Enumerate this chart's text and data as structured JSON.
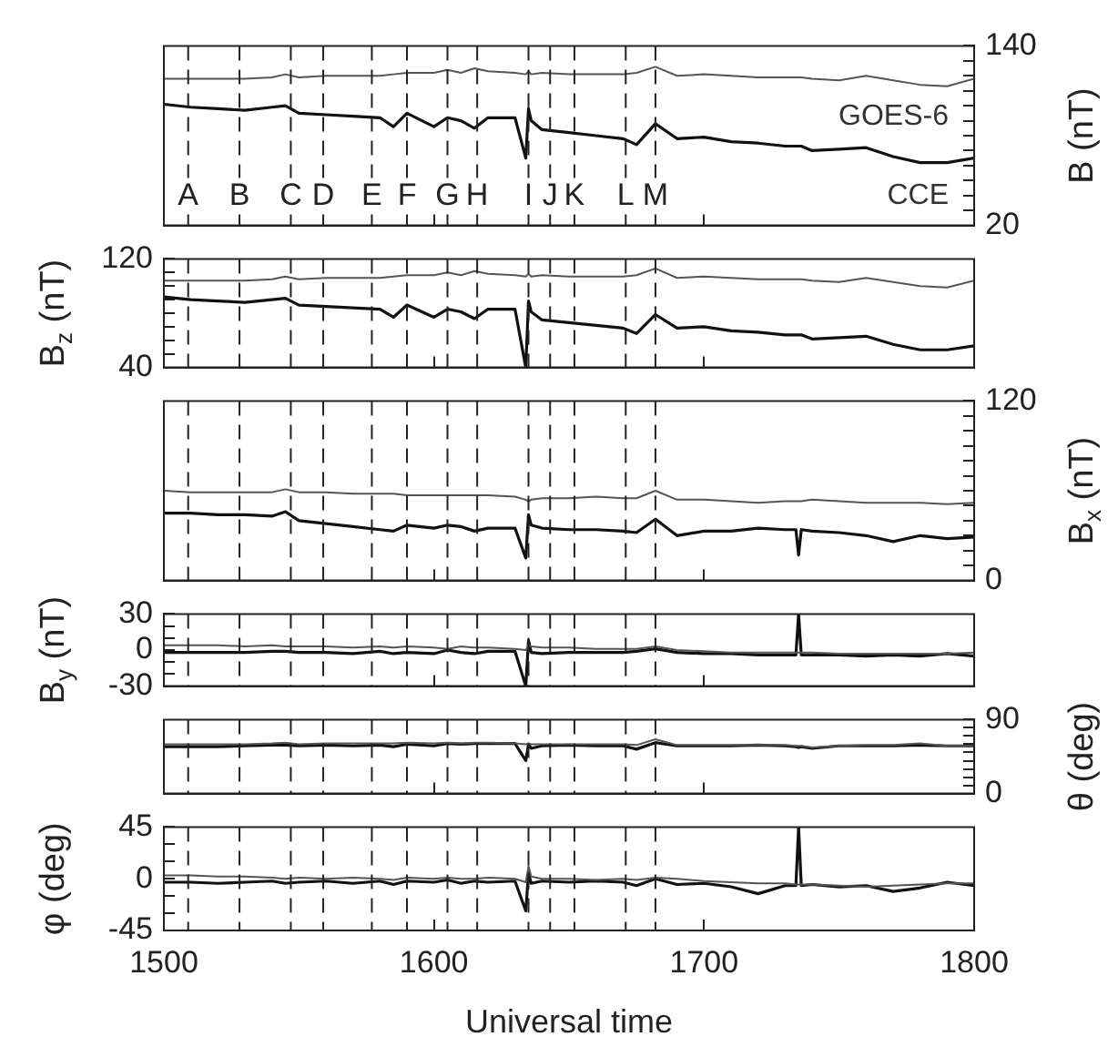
{
  "chart_data": [
    {
      "type": "line",
      "marker": "none",
      "xlim": [
        1500,
        1800
      ],
      "xticks": [
        1500,
        1600,
        1700,
        1800
      ],
      "tick_labels": "y",
      "y2lim": [
        20,
        140
      ],
      "y2label": "B (nT)",
      "y2ticks": [
        20,
        {
          "value": 30,
          "label": null
        },
        {
          "value": 40,
          "label": null
        },
        {
          "value": 50,
          "label": null
        },
        {
          "value": 60,
          "label": null
        },
        {
          "value": 70,
          "label": null
        },
        {
          "value": 80,
          "label": null
        },
        {
          "value": 90,
          "label": null
        },
        {
          "value": 100,
          "label": null
        },
        {
          "value": 110,
          "label": null
        },
        {
          "value": 120,
          "label": null
        },
        {
          "value": 130,
          "label": null
        },
        140
      ],
      "x": [
        1500,
        1510,
        1520,
        1530,
        1540,
        1545,
        1550,
        1560,
        1570,
        1580,
        1585,
        1590,
        1600,
        1605,
        1610,
        1615,
        1620,
        1630,
        1634,
        1635,
        1636,
        1640,
        1650,
        1660,
        1670,
        1675,
        1682,
        1690,
        1700,
        1710,
        1720,
        1730,
        1734,
        1735,
        1736,
        1740,
        1750,
        1760,
        1770,
        1780,
        1790,
        1800
      ],
      "series": [
        {
          "name": "GOES-6",
          "color": "#555555",
          "axis": "y2",
          "values": [
            118,
            118,
            118,
            118,
            119,
            121,
            119,
            120,
            120,
            120,
            121,
            122,
            122,
            124,
            122,
            125,
            123,
            122,
            121,
            123,
            121,
            122,
            121,
            121,
            121,
            122,
            126,
            120,
            121,
            120,
            119,
            119,
            119,
            119,
            119,
            118,
            117,
            120,
            117,
            114,
            113,
            118
          ]
        },
        {
          "name": "CCE",
          "color": "#111111",
          "axis": "y2",
          "values": [
            101,
            99,
            98,
            97,
            99,
            100,
            95,
            94,
            93,
            92,
            86,
            95,
            86,
            92,
            90,
            85,
            92,
            92,
            65,
            98,
            90,
            84,
            82,
            80,
            78,
            74,
            88,
            78,
            79,
            76,
            75,
            73,
            73,
            73,
            73,
            70,
            71,
            72,
            66,
            62,
            62,
            65
          ]
        }
      ],
      "ref_lines": [
        {
          "axis": "x",
          "value": 1509,
          "label": "A",
          "line_style": "dashed"
        },
        {
          "axis": "x",
          "value": 1528,
          "label": "B",
          "line_style": "dashed"
        },
        {
          "axis": "x",
          "value": 1547,
          "label": "C",
          "line_style": "dashed"
        },
        {
          "axis": "x",
          "value": 1559,
          "label": "D",
          "line_style": "dashed"
        },
        {
          "axis": "x",
          "value": 1577,
          "label": "E",
          "line_style": "dashed"
        },
        {
          "axis": "x",
          "value": 1590,
          "label": "F",
          "line_style": "dashed"
        },
        {
          "axis": "x",
          "value": 1605,
          "label": "G",
          "line_style": "dashed"
        },
        {
          "axis": "x",
          "value": 1616,
          "label": "H",
          "line_style": "dashed"
        },
        {
          "axis": "x",
          "value": 1635,
          "label": "I",
          "line_style": "dashed"
        },
        {
          "axis": "x",
          "value": 1643,
          "label": "J",
          "line_style": "dashed"
        },
        {
          "axis": "x",
          "value": 1652,
          "label": "K",
          "line_style": "dashed"
        },
        {
          "axis": "x",
          "value": 1671,
          "label": "L",
          "line_style": "dashed"
        },
        {
          "axis": "x",
          "value": 1682,
          "label": "M",
          "line_style": "dashed"
        }
      ]
    },
    {
      "type": "line",
      "marker": "none",
      "xlim": [
        1500,
        1800
      ],
      "xticks": [
        1500,
        1600,
        1700,
        1800
      ],
      "tick_labels": "y",
      "ylim": [
        40,
        120
      ],
      "ylabel": "B$_{z}$ (nT)",
      "yticks": [
        40,
        {
          "value": 50,
          "label": null
        },
        {
          "value": 60,
          "label": null
        },
        {
          "value": 70,
          "label": null
        },
        {
          "value": 80,
          "label": null
        },
        {
          "value": 90,
          "label": null
        },
        {
          "value": 100,
          "label": null
        },
        {
          "value": 110,
          "label": null
        },
        120
      ],
      "x": [
        1500,
        1510,
        1520,
        1530,
        1540,
        1545,
        1550,
        1560,
        1570,
        1580,
        1585,
        1590,
        1600,
        1605,
        1610,
        1615,
        1620,
        1630,
        1634,
        1635,
        1636,
        1640,
        1650,
        1660,
        1670,
        1675,
        1682,
        1690,
        1700,
        1710,
        1720,
        1730,
        1734,
        1735,
        1736,
        1740,
        1750,
        1760,
        1770,
        1780,
        1790,
        1800
      ],
      "series": [
        {
          "color": "#555555",
          "values": [
            104,
            104,
            104,
            104,
            105,
            107,
            105,
            106,
            106,
            106,
            107,
            108,
            108,
            110,
            108,
            111,
            109,
            108,
            107,
            109,
            107,
            108,
            107,
            107,
            107,
            108,
            113,
            106,
            107,
            106,
            105,
            105,
            105,
            105,
            105,
            104,
            103,
            106,
            103,
            100,
            99,
            104
          ]
        },
        {
          "color": "#111111",
          "values": [
            92,
            90,
            89,
            88,
            90,
            91,
            86,
            85,
            84,
            83,
            77,
            86,
            77,
            83,
            81,
            76,
            83,
            83,
            40,
            89,
            81,
            75,
            73,
            71,
            69,
            65,
            79,
            69,
            70,
            67,
            66,
            64,
            64,
            64,
            64,
            61,
            62,
            63,
            57,
            53,
            53,
            56
          ]
        }
      ],
      "ref_lines": [
        {
          "axis": "x",
          "value": 1509,
          "line_style": "dashed"
        },
        {
          "axis": "x",
          "value": 1528,
          "line_style": "dashed"
        },
        {
          "axis": "x",
          "value": 1547,
          "line_style": "dashed"
        },
        {
          "axis": "x",
          "value": 1559,
          "line_style": "dashed"
        },
        {
          "axis": "x",
          "value": 1577,
          "line_style": "dashed"
        },
        {
          "axis": "x",
          "value": 1590,
          "line_style": "dashed"
        },
        {
          "axis": "x",
          "value": 1605,
          "line_style": "dashed"
        },
        {
          "axis": "x",
          "value": 1616,
          "line_style": "dashed"
        },
        {
          "axis": "x",
          "value": 1635,
          "line_style": "dashed"
        },
        {
          "axis": "x",
          "value": 1643,
          "line_style": "dashed"
        },
        {
          "axis": "x",
          "value": 1652,
          "line_style": "dashed"
        },
        {
          "axis": "x",
          "value": 1671,
          "line_style": "dashed"
        },
        {
          "axis": "x",
          "value": 1682,
          "line_style": "dashed"
        }
      ]
    },
    {
      "type": "line",
      "marker": "none",
      "xlim": [
        1500,
        1800
      ],
      "xticks": [
        1500,
        1600,
        1700,
        1800
      ],
      "tick_labels": "y",
      "y2lim": [
        0,
        120
      ],
      "y2label": "B$_{x}$ (nT)",
      "y2ticks": [
        0,
        {
          "value": 10,
          "label": null
        },
        {
          "value": 20,
          "label": null
        },
        {
          "value": 30,
          "label": null
        },
        {
          "value": 40,
          "label": null
        },
        {
          "value": 50,
          "label": null
        },
        {
          "value": 60,
          "label": null
        },
        {
          "value": 70,
          "label": null
        },
        {
          "value": 80,
          "label": null
        },
        {
          "value": 90,
          "label": null
        },
        {
          "value": 100,
          "label": null
        },
        {
          "value": 110,
          "label": null
        },
        120
      ],
      "x": [
        1500,
        1510,
        1520,
        1530,
        1540,
        1545,
        1550,
        1560,
        1570,
        1580,
        1585,
        1590,
        1600,
        1605,
        1610,
        1615,
        1620,
        1630,
        1634,
        1635,
        1636,
        1640,
        1650,
        1660,
        1670,
        1675,
        1682,
        1690,
        1700,
        1710,
        1720,
        1730,
        1734,
        1735,
        1736,
        1740,
        1750,
        1760,
        1770,
        1780,
        1790,
        1800
      ],
      "series": [
        {
          "color": "#555555",
          "axis": "y2",
          "values": [
            60,
            59,
            59,
            59,
            59,
            61,
            59,
            59,
            58,
            58,
            58,
            57,
            57,
            57,
            57,
            57,
            57,
            56,
            54,
            53,
            54,
            55,
            55,
            56,
            55,
            55,
            60,
            54,
            54,
            53,
            52,
            53,
            53,
            53,
            53,
            54,
            53,
            52,
            52,
            52,
            51,
            52
          ]
        },
        {
          "color": "#111111",
          "axis": "y2",
          "values": [
            45,
            45,
            44,
            44,
            43,
            46,
            40,
            38,
            36,
            34,
            33,
            37,
            35,
            37,
            36,
            33,
            35,
            35,
            15,
            44,
            37,
            35,
            34,
            34,
            33,
            32,
            41,
            30,
            33,
            33,
            35,
            34,
            34,
            17,
            34,
            33,
            32,
            30,
            26,
            30,
            28,
            29
          ]
        }
      ],
      "ref_lines": [
        {
          "axis": "x",
          "value": 1509,
          "line_style": "dashed"
        },
        {
          "axis": "x",
          "value": 1528,
          "line_style": "dashed"
        },
        {
          "axis": "x",
          "value": 1547,
          "line_style": "dashed"
        },
        {
          "axis": "x",
          "value": 1559,
          "line_style": "dashed"
        },
        {
          "axis": "x",
          "value": 1577,
          "line_style": "dashed"
        },
        {
          "axis": "x",
          "value": 1590,
          "line_style": "dashed"
        },
        {
          "axis": "x",
          "value": 1605,
          "line_style": "dashed"
        },
        {
          "axis": "x",
          "value": 1616,
          "line_style": "dashed"
        },
        {
          "axis": "x",
          "value": 1635,
          "line_style": "dashed"
        },
        {
          "axis": "x",
          "value": 1643,
          "line_style": "dashed"
        },
        {
          "axis": "x",
          "value": 1652,
          "line_style": "dashed"
        },
        {
          "axis": "x",
          "value": 1671,
          "line_style": "dashed"
        },
        {
          "axis": "x",
          "value": 1682,
          "line_style": "dashed"
        }
      ]
    },
    {
      "type": "line",
      "marker": "none",
      "xlim": [
        1500,
        1800
      ],
      "xticks": [
        1500,
        1600,
        1700,
        1800
      ],
      "tick_labels": "y",
      "ylim": [
        -30,
        30
      ],
      "ylabel": "B$_{y}$ (nT)",
      "yticks": [
        -30,
        {
          "value": -20,
          "label": null
        },
        {
          "value": -10,
          "label": null
        },
        0,
        {
          "value": 10,
          "label": null
        },
        {
          "value": 20,
          "label": null
        },
        30
      ],
      "x": [
        1500,
        1510,
        1520,
        1530,
        1540,
        1545,
        1550,
        1560,
        1570,
        1580,
        1585,
        1590,
        1600,
        1605,
        1610,
        1615,
        1620,
        1630,
        1634,
        1635,
        1636,
        1640,
        1650,
        1660,
        1670,
        1675,
        1682,
        1690,
        1700,
        1710,
        1720,
        1730,
        1734,
        1735,
        1736,
        1740,
        1750,
        1760,
        1770,
        1780,
        1790,
        1800
      ],
      "series": [
        {
          "color": "#555555",
          "values": [
            4,
            4,
            4,
            3,
            4,
            3,
            3,
            3,
            2,
            3,
            2,
            3,
            2,
            1,
            3,
            2,
            2,
            1,
            0,
            4,
            3,
            2,
            2,
            1,
            1,
            1,
            3,
            0,
            -1,
            -2,
            -2,
            -2,
            -2,
            -2,
            -2,
            -2,
            -3,
            -3,
            -3,
            -3,
            -3,
            -2
          ]
        },
        {
          "color": "#111111",
          "values": [
            -2,
            -2,
            -2,
            -2,
            -1,
            -1,
            -2,
            -2,
            -3,
            -1,
            -3,
            -2,
            -3,
            0,
            -2,
            -3,
            -1,
            -1,
            -30,
            8,
            -2,
            -3,
            -2,
            -2,
            -2,
            -1,
            1,
            -2,
            -3,
            -3,
            -4,
            -4,
            -4,
            30,
            -4,
            -4,
            -4,
            -5,
            -4,
            -5,
            -3,
            -5
          ]
        }
      ],
      "ref_lines": [
        {
          "axis": "x",
          "value": 1509,
          "line_style": "dashed"
        },
        {
          "axis": "x",
          "value": 1528,
          "line_style": "dashed"
        },
        {
          "axis": "x",
          "value": 1547,
          "line_style": "dashed"
        },
        {
          "axis": "x",
          "value": 1559,
          "line_style": "dashed"
        },
        {
          "axis": "x",
          "value": 1577,
          "line_style": "dashed"
        },
        {
          "axis": "x",
          "value": 1590,
          "line_style": "dashed"
        },
        {
          "axis": "x",
          "value": 1605,
          "line_style": "dashed"
        },
        {
          "axis": "x",
          "value": 1616,
          "line_style": "dashed"
        },
        {
          "axis": "x",
          "value": 1635,
          "line_style": "dashed"
        },
        {
          "axis": "x",
          "value": 1643,
          "line_style": "dashed"
        },
        {
          "axis": "x",
          "value": 1652,
          "line_style": "dashed"
        },
        {
          "axis": "x",
          "value": 1671,
          "line_style": "dashed"
        },
        {
          "axis": "x",
          "value": 1682,
          "line_style": "dashed"
        }
      ]
    },
    {
      "type": "line",
      "marker": "none",
      "xlim": [
        1500,
        1800
      ],
      "xticks": [
        1500,
        1600,
        1700,
        1800
      ],
      "tick_labels": "y",
      "y2lim": [
        0,
        90
      ],
      "y2label": "θ (deg)",
      "y2ticks": [
        0,
        {
          "value": 10,
          "label": null
        },
        {
          "value": 20,
          "label": null
        },
        {
          "value": 30,
          "label": null
        },
        {
          "value": 40,
          "label": null
        },
        {
          "value": 50,
          "label": null
        },
        {
          "value": 60,
          "label": null
        },
        {
          "value": 70,
          "label": null
        },
        {
          "value": 80,
          "label": null
        },
        90
      ],
      "x": [
        1500,
        1510,
        1520,
        1530,
        1540,
        1545,
        1550,
        1560,
        1570,
        1580,
        1585,
        1590,
        1600,
        1605,
        1610,
        1615,
        1620,
        1630,
        1634,
        1635,
        1636,
        1640,
        1650,
        1660,
        1670,
        1675,
        1682,
        1690,
        1700,
        1710,
        1720,
        1730,
        1734,
        1735,
        1736,
        1740,
        1750,
        1760,
        1770,
        1780,
        1790,
        1800
      ],
      "series": [
        {
          "color": "#555555",
          "axis": "y2",
          "values": [
            60,
            60,
            60,
            60,
            61,
            62,
            60,
            61,
            61,
            61,
            61,
            62,
            61,
            62,
            61,
            62,
            62,
            61,
            60,
            61,
            60,
            60,
            60,
            60,
            60,
            59,
            66,
            59,
            59,
            59,
            59,
            59,
            58,
            58,
            58,
            56,
            58,
            59,
            59,
            61,
            58,
            58
          ]
        },
        {
          "color": "#111111",
          "axis": "y2",
          "values": [
            57,
            57,
            57,
            58,
            59,
            59,
            58,
            59,
            58,
            59,
            57,
            60,
            58,
            61,
            60,
            61,
            61,
            61,
            40,
            60,
            55,
            58,
            59,
            58,
            58,
            54,
            62,
            58,
            58,
            58,
            59,
            58,
            57,
            56,
            57,
            55,
            58,
            58,
            58,
            59,
            58,
            58
          ]
        }
      ],
      "ref_lines": [
        {
          "axis": "x",
          "value": 1509,
          "line_style": "dashed"
        },
        {
          "axis": "x",
          "value": 1528,
          "line_style": "dashed"
        },
        {
          "axis": "x",
          "value": 1547,
          "line_style": "dashed"
        },
        {
          "axis": "x",
          "value": 1559,
          "line_style": "dashed"
        },
        {
          "axis": "x",
          "value": 1577,
          "line_style": "dashed"
        },
        {
          "axis": "x",
          "value": 1590,
          "line_style": "dashed"
        },
        {
          "axis": "x",
          "value": 1605,
          "line_style": "dashed"
        },
        {
          "axis": "x",
          "value": 1616,
          "line_style": "dashed"
        },
        {
          "axis": "x",
          "value": 1635,
          "line_style": "dashed"
        },
        {
          "axis": "x",
          "value": 1643,
          "line_style": "dashed"
        },
        {
          "axis": "x",
          "value": 1652,
          "line_style": "dashed"
        },
        {
          "axis": "x",
          "value": 1671,
          "line_style": "dashed"
        },
        {
          "axis": "x",
          "value": 1682,
          "line_style": "dashed"
        }
      ]
    },
    {
      "type": "line",
      "marker": "none",
      "xlim": [
        1500,
        1800
      ],
      "xticks": [
        1500,
        1600,
        1700,
        1800
      ],
      "xlabel": "Universal time",
      "ylim": [
        -45,
        45
      ],
      "ylabel": "φ (deg)",
      "yticks": [
        -45,
        {
          "value": -30,
          "label": null
        },
        {
          "value": -15,
          "label": null
        },
        0,
        {
          "value": 15,
          "label": null
        },
        {
          "value": 30,
          "label": null
        },
        45
      ],
      "x": [
        1500,
        1510,
        1520,
        1530,
        1540,
        1545,
        1550,
        1560,
        1570,
        1580,
        1585,
        1590,
        1600,
        1605,
        1610,
        1615,
        1620,
        1630,
        1634,
        1635,
        1636,
        1640,
        1650,
        1660,
        1670,
        1675,
        1682,
        1690,
        1700,
        1710,
        1720,
        1730,
        1734,
        1735,
        1736,
        1740,
        1750,
        1760,
        1770,
        1780,
        1790,
        1800
      ],
      "series": [
        {
          "color": "#555555",
          "values": [
            3,
            3,
            2,
            2,
            1,
            0,
            1,
            0,
            1,
            0,
            -1,
            1,
            0,
            1,
            0,
            0,
            1,
            0,
            -3,
            11,
            2,
            0,
            0,
            -1,
            0,
            -1,
            1,
            0,
            -2,
            -3,
            -4,
            -4,
            -5,
            -5,
            -5,
            -5,
            -6,
            -7,
            -6,
            -5,
            -4,
            -4
          ]
        },
        {
          "color": "#111111",
          "values": [
            -3,
            -3,
            -4,
            -3,
            -2,
            -4,
            -3,
            -2,
            -4,
            -2,
            -5,
            -2,
            -3,
            -1,
            -4,
            -2,
            -3,
            -2,
            -28,
            5,
            -4,
            -2,
            -3,
            -2,
            -3,
            -6,
            0,
            -5,
            -4,
            -7,
            -13,
            -6,
            -6,
            45,
            -6,
            -5,
            -7,
            -6,
            -11,
            -8,
            -3,
            -6
          ]
        }
      ],
      "ref_lines": [
        {
          "axis": "x",
          "value": 1509,
          "line_style": "dashed"
        },
        {
          "axis": "x",
          "value": 1528,
          "line_style": "dashed"
        },
        {
          "axis": "x",
          "value": 1547,
          "line_style": "dashed"
        },
        {
          "axis": "x",
          "value": 1559,
          "line_style": "dashed"
        },
        {
          "axis": "x",
          "value": 1577,
          "line_style": "dashed"
        },
        {
          "axis": "x",
          "value": 1590,
          "line_style": "dashed"
        },
        {
          "axis": "x",
          "value": 1605,
          "line_style": "dashed"
        },
        {
          "axis": "x",
          "value": 1616,
          "line_style": "dashed"
        },
        {
          "axis": "x",
          "value": 1635,
          "line_style": "dashed"
        },
        {
          "axis": "x",
          "value": 1643,
          "line_style": "dashed"
        },
        {
          "axis": "x",
          "value": 1652,
          "line_style": "dashed"
        },
        {
          "axis": "x",
          "value": 1671,
          "line_style": "dashed"
        },
        {
          "axis": "x",
          "value": 1682,
          "line_style": "dashed"
        }
      ]
    }
  ]
}
